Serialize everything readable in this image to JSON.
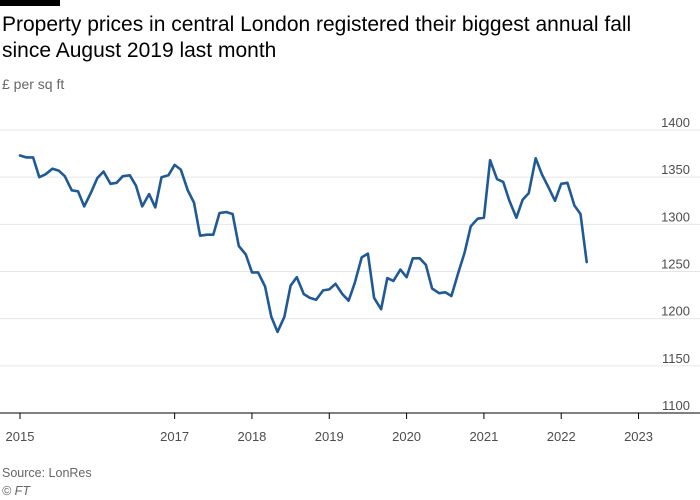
{
  "colors": {
    "line": "#1f5a96",
    "grid": "#e6e6e6",
    "axis": "#000000",
    "tick_text": "#4d4d4d"
  },
  "title": "Property prices in central London registered their biggest annual fall since August 2019 last month",
  "subtitle": "£ per sq ft",
  "source": "Source: LonRes",
  "credit": "© FT",
  "chart_data": {
    "type": "line",
    "title": "Property prices in central London registered their biggest annual fall since August 2019 last month",
    "ylabel": "£ per sq ft",
    "xlabel": "",
    "x_ticks": [
      {
        "label": "2015",
        "value": 2015.0
      },
      {
        "label": "2017",
        "value": 2017.0
      },
      {
        "label": "2018",
        "value": 2018.0
      },
      {
        "label": "2019",
        "value": 2019.0
      },
      {
        "label": "2020",
        "value": 2020.0
      },
      {
        "label": "2021",
        "value": 2021.0
      },
      {
        "label": "2022",
        "value": 2022.0
      },
      {
        "label": "2023",
        "value": 2023.0
      }
    ],
    "y_ticks": [
      1100,
      1150,
      1200,
      1250,
      1300,
      1350,
      1400
    ],
    "xlim": [
      2015.0,
      2023.2
    ],
    "ylim": [
      1100,
      1400
    ],
    "grid": true,
    "series": [
      {
        "points": [
          [
            2015.0,
            1373
          ],
          [
            2015.08,
            1371
          ],
          [
            2015.17,
            1371
          ],
          [
            2015.25,
            1350
          ],
          [
            2015.33,
            1353
          ],
          [
            2015.42,
            1359
          ],
          [
            2015.5,
            1357
          ],
          [
            2015.58,
            1351
          ],
          [
            2015.67,
            1336
          ],
          [
            2015.75,
            1335
          ],
          [
            2015.83,
            1319
          ],
          [
            2015.92,
            1334
          ],
          [
            2016.0,
            1349
          ],
          [
            2016.08,
            1356
          ],
          [
            2016.17,
            1343
          ],
          [
            2016.25,
            1344
          ],
          [
            2016.33,
            1351
          ],
          [
            2016.42,
            1352
          ],
          [
            2016.5,
            1341
          ],
          [
            2016.58,
            1319
          ],
          [
            2016.67,
            1332
          ],
          [
            2016.75,
            1318
          ],
          [
            2016.83,
            1350
          ],
          [
            2016.92,
            1352
          ],
          [
            2017.0,
            1363
          ],
          [
            2017.08,
            1358
          ],
          [
            2017.17,
            1336
          ],
          [
            2017.25,
            1323
          ],
          [
            2017.33,
            1288
          ],
          [
            2017.42,
            1289
          ],
          [
            2017.5,
            1289
          ],
          [
            2017.58,
            1312
          ],
          [
            2017.67,
            1313
          ],
          [
            2017.75,
            1311
          ],
          [
            2017.83,
            1277
          ],
          [
            2017.92,
            1268
          ],
          [
            2018.0,
            1249
          ],
          [
            2018.08,
            1249
          ],
          [
            2018.17,
            1234
          ],
          [
            2018.25,
            1202
          ],
          [
            2018.33,
            1186
          ],
          [
            2018.42,
            1202
          ],
          [
            2018.5,
            1235
          ],
          [
            2018.58,
            1244
          ],
          [
            2018.67,
            1226
          ],
          [
            2018.75,
            1222
          ],
          [
            2018.83,
            1220
          ],
          [
            2018.92,
            1230
          ],
          [
            2019.0,
            1231
          ],
          [
            2019.08,
            1237
          ],
          [
            2019.17,
            1226
          ],
          [
            2019.25,
            1219
          ],
          [
            2019.33,
            1238
          ],
          [
            2019.42,
            1265
          ],
          [
            2019.5,
            1269
          ],
          [
            2019.58,
            1222
          ],
          [
            2019.67,
            1210
          ],
          [
            2019.75,
            1243
          ],
          [
            2019.83,
            1240
          ],
          [
            2019.92,
            1252
          ],
          [
            2020.0,
            1244
          ],
          [
            2020.08,
            1264
          ],
          [
            2020.17,
            1264
          ],
          [
            2020.25,
            1257
          ],
          [
            2020.33,
            1232
          ],
          [
            2020.42,
            1227
          ],
          [
            2020.5,
            1228
          ],
          [
            2020.58,
            1224
          ],
          [
            2020.67,
            1249
          ],
          [
            2020.75,
            1270
          ],
          [
            2020.83,
            1298
          ],
          [
            2020.92,
            1306
          ],
          [
            2021.0,
            1307
          ],
          [
            2021.08,
            1368
          ],
          [
            2021.17,
            1348
          ],
          [
            2021.25,
            1345
          ],
          [
            2021.33,
            1325
          ],
          [
            2021.42,
            1307
          ],
          [
            2021.5,
            1326
          ],
          [
            2021.58,
            1333
          ],
          [
            2021.67,
            1370
          ],
          [
            2021.75,
            1353
          ],
          [
            2021.83,
            1340
          ],
          [
            2021.92,
            1325
          ],
          [
            2022.0,
            1343
          ],
          [
            2022.08,
            1344
          ],
          [
            2022.17,
            1320
          ],
          [
            2022.25,
            1311
          ],
          [
            2022.33,
            1260
          ]
        ]
      }
    ]
  }
}
